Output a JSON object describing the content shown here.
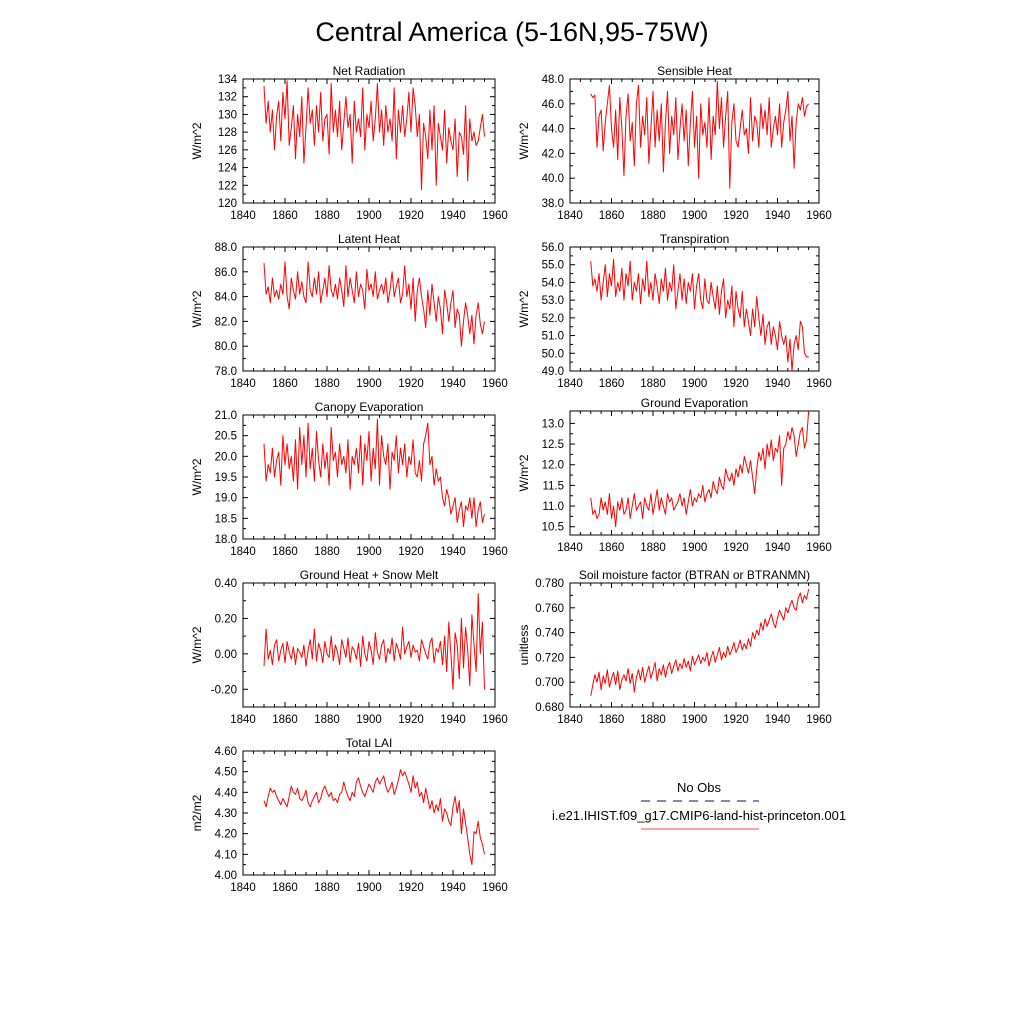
{
  "figure_title": "Central America (5-16N,95-75W)",
  "legend": {
    "entries": [
      {
        "label": "No Obs",
        "color": "#3a3aa0",
        "dash": true
      },
      {
        "label": "i.e21.IHIST.f09_g17.CMIP6-land-hist-princeton.001",
        "color": "#ff6b6b",
        "dash": false
      }
    ]
  },
  "series_color": "#ff0000",
  "chart_data": [
    {
      "type": "line",
      "title": "Net Radiation",
      "ylabel": "W/m^2",
      "xlim": [
        1840,
        1960
      ],
      "xticks": [
        1840,
        1860,
        1880,
        1900,
        1920,
        1940,
        1960
      ],
      "ylim": [
        120,
        134
      ],
      "yticks": [
        120,
        122,
        124,
        126,
        128,
        130,
        132,
        134
      ],
      "ydec": 0,
      "x_start": 1850,
      "values": [
        133.2,
        129.0,
        131.5,
        128.0,
        130.5,
        126.0,
        129.8,
        131.5,
        127.0,
        132.5,
        129.5,
        133.8,
        126.5,
        128.5,
        131.0,
        125.0,
        130.0,
        127.5,
        132.0,
        124.5,
        128.5,
        133.0,
        129.0,
        130.5,
        126.5,
        131.0,
        128.0,
        132.5,
        127.0,
        129.5,
        130.0,
        125.5,
        133.5,
        128.0,
        130.5,
        127.5,
        131.5,
        126.0,
        129.0,
        132.0,
        128.5,
        130.0,
        124.5,
        131.5,
        128.0,
        129.5,
        127.5,
        133.0,
        126.0,
        130.0,
        128.5,
        131.5,
        127.0,
        129.5,
        133.5,
        128.0,
        130.5,
        126.5,
        131.0,
        128.0,
        129.5,
        127.0,
        133.0,
        125.0,
        130.5,
        128.0,
        131.0,
        127.5,
        129.5,
        132.5,
        128.0,
        133.0,
        131.0,
        127.5,
        130.0,
        121.5,
        129.0,
        127.5,
        125.0,
        130.5,
        126.0,
        131.0,
        122.0,
        129.0,
        127.5,
        126.0,
        130.5,
        124.5,
        128.5,
        127.0,
        126.0,
        129.5,
        123.0,
        128.0,
        127.5,
        125.5,
        131.0,
        122.5,
        129.5,
        127.0,
        128.0,
        126.5,
        127.0,
        128.5,
        130.0,
        127.5
      ]
    },
    {
      "type": "line",
      "title": "Sensible Heat",
      "ylabel": "W/m^2",
      "xlim": [
        1840,
        1960
      ],
      "xticks": [
        1840,
        1860,
        1880,
        1900,
        1920,
        1940,
        1960
      ],
      "ylim": [
        38,
        48
      ],
      "yticks": [
        38,
        40,
        42,
        44,
        46,
        48
      ],
      "ydec": 1,
      "x_start": 1850,
      "values": [
        46.8,
        46.5,
        46.7,
        42.5,
        45.0,
        45.5,
        42.2,
        44.5,
        46.0,
        47.5,
        44.0,
        42.5,
        45.5,
        41.5,
        46.5,
        44.0,
        40.2,
        45.0,
        46.8,
        43.0,
        44.5,
        41.0,
        46.0,
        47.5,
        42.5,
        45.0,
        43.5,
        46.5,
        41.2,
        44.0,
        47.0,
        42.5,
        45.5,
        43.0,
        46.0,
        40.5,
        44.5,
        47.0,
        42.0,
        45.0,
        43.5,
        46.5,
        41.5,
        44.0,
        46.0,
        43.0,
        45.5,
        41.0,
        44.5,
        47.0,
        42.5,
        45.0,
        40.0,
        46.0,
        43.5,
        44.5,
        42.5,
        46.5,
        41.5,
        45.0,
        43.5,
        47.8,
        44.0,
        46.5,
        42.5,
        45.0,
        47.0,
        39.2,
        44.5,
        46.0,
        43.0,
        42.5,
        44.0,
        45.5,
        43.5,
        44.0,
        42.0,
        46.5,
        43.0,
        45.0,
        44.5,
        42.5,
        46.0,
        44.0,
        45.5,
        43.5,
        46.5,
        42.5,
        44.0,
        45.0,
        43.5,
        46.0,
        42.5,
        44.5,
        45.5,
        47.0,
        43.0,
        45.0,
        40.8,
        44.5,
        46.0,
        45.5,
        46.5,
        45.0,
        45.8,
        46.0
      ]
    },
    {
      "type": "line",
      "title": "Latent Heat",
      "ylabel": "W/m^2",
      "xlim": [
        1840,
        1960
      ],
      "xticks": [
        1840,
        1860,
        1880,
        1900,
        1920,
        1940,
        1960
      ],
      "ylim": [
        78,
        88
      ],
      "yticks": [
        78,
        80,
        82,
        84,
        86,
        88
      ],
      "ydec": 1,
      "x_start": 1850,
      "values": [
        86.7,
        84.2,
        84.8,
        83.5,
        85.5,
        84.0,
        84.5,
        83.8,
        85.0,
        84.2,
        86.8,
        84.0,
        83.0,
        85.5,
        84.5,
        83.8,
        86.0,
        84.2,
        85.2,
        84.0,
        83.5,
        86.8,
        84.5,
        84.0,
        85.5,
        84.2,
        86.0,
        83.5,
        84.5,
        85.5,
        84.0,
        86.5,
        84.5,
        84.0,
        85.0,
        83.8,
        85.5,
        84.5,
        83.2,
        86.5,
        84.0,
        85.5,
        84.5,
        83.5,
        86.0,
        84.0,
        85.0,
        84.5,
        83.0,
        86.2,
        84.5,
        85.0,
        84.0,
        86.0,
        83.8,
        84.5,
        85.0,
        84.2,
        85.5,
        83.5,
        84.5,
        86.0,
        84.0,
        84.8,
        85.5,
        83.5,
        84.2,
        86.5,
        84.0,
        85.0,
        83.0,
        85.5,
        82.0,
        84.5,
        85.5,
        84.0,
        83.0,
        81.5,
        84.5,
        82.5,
        85.0,
        83.5,
        82.0,
        84.0,
        83.0,
        81.0,
        84.5,
        83.5,
        82.0,
        83.5,
        84.5,
        81.5,
        83.0,
        82.5,
        80.0,
        82.0,
        83.5,
        82.5,
        81.0,
        82.5,
        80.2,
        82.5,
        83.5,
        81.8,
        81.0,
        82.0
      ]
    },
    {
      "type": "line",
      "title": "Transpiration",
      "ylabel": "W/m^2",
      "xlim": [
        1840,
        1960
      ],
      "xticks": [
        1840,
        1860,
        1880,
        1900,
        1920,
        1940,
        1960
      ],
      "ylim": [
        49,
        56
      ],
      "yticks": [
        49,
        50,
        51,
        52,
        53,
        54,
        55,
        56
      ],
      "ydec": 1,
      "x_start": 1850,
      "values": [
        55.2,
        53.8,
        54.2,
        53.5,
        54.5,
        53.0,
        54.0,
        55.0,
        53.2,
        54.5,
        53.8,
        55.3,
        53.2,
        54.0,
        53.5,
        54.8,
        53.0,
        54.5,
        53.8,
        55.2,
        53.0,
        54.0,
        53.5,
        54.5,
        52.8,
        54.2,
        53.5,
        55.2,
        53.2,
        54.0,
        53.0,
        54.5,
        53.8,
        52.8,
        54.2,
        53.5,
        54.8,
        53.0,
        54.0,
        53.5,
        55.0,
        52.5,
        53.5,
        54.5,
        53.0,
        54.2,
        52.8,
        54.0,
        53.5,
        54.5,
        52.5,
        53.8,
        54.5,
        53.0,
        52.5,
        54.2,
        53.0,
        52.8,
        54.0,
        53.2,
        52.5,
        53.8,
        52.2,
        53.5,
        54.2,
        52.0,
        53.0,
        52.5,
        53.8,
        51.5,
        53.5,
        52.5,
        52.0,
        53.5,
        51.5,
        52.5,
        51.8,
        51.0,
        52.5,
        51.5,
        53.2,
        52.0,
        51.0,
        52.2,
        50.5,
        51.5,
        51.8,
        50.5,
        51.5,
        51.0,
        50.2,
        51.8,
        51.0,
        50.5,
        51.0,
        49.5,
        50.8,
        49.0,
        50.5,
        51.0,
        50.2,
        51.8,
        51.5,
        50.0,
        49.8,
        49.8
      ]
    },
    {
      "type": "line",
      "title": "Canopy Evaporation",
      "ylabel": "W/m^2",
      "xlim": [
        1840,
        1960
      ],
      "xticks": [
        1840,
        1860,
        1880,
        1900,
        1920,
        1940,
        1960
      ],
      "ylim": [
        18,
        21
      ],
      "yticks": [
        18.0,
        18.5,
        19.0,
        19.5,
        20.0,
        20.5,
        21.0
      ],
      "ydec": 1,
      "x_start": 1850,
      "values": [
        20.3,
        19.4,
        19.8,
        19.6,
        20.2,
        19.5,
        19.9,
        20.1,
        19.3,
        20.5,
        19.8,
        20.3,
        19.7,
        20.0,
        19.4,
        20.4,
        19.2,
        20.7,
        19.8,
        20.5,
        19.5,
        20.8,
        19.7,
        20.2,
        19.4,
        20.6,
        19.9,
        19.5,
        20.3,
        19.7,
        20.1,
        19.3,
        20.7,
        19.9,
        20.1,
        19.5,
        20.3,
        19.8,
        20.0,
        19.6,
        20.4,
        19.2,
        20.0,
        19.8,
        20.2,
        19.6,
        20.5,
        19.3,
        20.3,
        19.9,
        20.6,
        19.4,
        20.2,
        19.7,
        20.9,
        19.3,
        20.5,
        20.0,
        19.8,
        20.3,
        19.2,
        20.1,
        19.9,
        20.5,
        19.6,
        20.2,
        19.8,
        20.3,
        19.5,
        20.0,
        19.8,
        20.4,
        19.6,
        19.5,
        19.9,
        19.4,
        20.3,
        20.5,
        20.8,
        19.8,
        20.0,
        19.3,
        19.7,
        19.4,
        19.5,
        19.0,
        18.8,
        19.2,
        19.0,
        18.6,
        18.8,
        19.0,
        18.4,
        18.7,
        18.9,
        18.3,
        18.8,
        18.7,
        19.0,
        18.5,
        19.0,
        18.3,
        18.7,
        18.9,
        18.4,
        18.6
      ]
    },
    {
      "type": "line",
      "title": "Ground Evaporation",
      "ylabel": "W/m^2",
      "xlim": [
        1840,
        1960
      ],
      "xticks": [
        1840,
        1860,
        1880,
        1900,
        1920,
        1940,
        1960
      ],
      "ylim": [
        10.3,
        13.3
      ],
      "yticks": [
        10.5,
        11.0,
        11.5,
        12.0,
        12.5,
        13.0
      ],
      "ydec": 1,
      "x_start": 1850,
      "values": [
        11.2,
        10.8,
        10.9,
        10.7,
        10.8,
        11.2,
        10.9,
        11.1,
        10.8,
        11.3,
        10.7,
        11.0,
        10.5,
        11.1,
        10.9,
        11.2,
        10.8,
        10.9,
        11.2,
        10.7,
        11.0,
        11.3,
        10.9,
        11.0,
        11.1,
        10.7,
        11.2,
        11.0,
        10.9,
        11.3,
        10.8,
        11.1,
        11.4,
        10.9,
        11.2,
        11.0,
        10.8,
        11.3,
        11.1,
        11.2,
        10.9,
        11.0,
        11.1,
        11.3,
        11.0,
        11.2,
        10.8,
        11.1,
        11.4,
        11.0,
        11.2,
        11.1,
        11.3,
        11.2,
        11.5,
        11.1,
        11.3,
        11.4,
        11.2,
        11.6,
        11.4,
        11.3,
        11.7,
        11.5,
        11.4,
        11.9,
        11.7,
        11.6,
        11.8,
        11.5,
        11.9,
        11.7,
        12.0,
        11.8,
        12.2,
        12.0,
        11.8,
        12.1,
        11.7,
        11.3,
        11.9,
        12.3,
        12.1,
        12.4,
        11.9,
        12.5,
        12.2,
        12.6,
        12.1,
        12.4,
        12.3,
        12.7,
        11.5,
        12.4,
        12.5,
        12.8,
        12.6,
        12.9,
        12.7,
        12.2,
        12.5,
        12.8,
        12.9,
        12.4,
        12.6,
        13.3
      ]
    },
    {
      "type": "line",
      "title": "Ground Heat + Snow Melt",
      "ylabel": "W/m^2",
      "xlim": [
        1840,
        1960
      ],
      "xticks": [
        1840,
        1860,
        1880,
        1900,
        1920,
        1940,
        1960
      ],
      "ylim": [
        -0.3,
        0.4
      ],
      "yticks": [
        -0.2,
        0.0,
        0.2,
        0.4
      ],
      "ydec": 2,
      "x_start": 1850,
      "values": [
        -0.07,
        0.14,
        -0.03,
        0.02,
        -0.06,
        0.05,
        0.08,
        -0.04,
        0.02,
        0.06,
        -0.05,
        0.07,
        0.01,
        -0.03,
        0.04,
        -0.06,
        0.03,
        0.01,
        -0.02,
        0.05,
        -0.07,
        0.02,
        0.08,
        -0.03,
        0.14,
        -0.04,
        0.06,
        0.02,
        -0.05,
        0.07,
        0.0,
        -0.02,
        0.1,
        -0.04,
        0.05,
        0.01,
        -0.06,
        0.08,
        0.03,
        -0.02,
        0.09,
        -0.05,
        0.04,
        0.02,
        -0.03,
        0.06,
        -0.07,
        0.1,
        0.0,
        -0.04,
        0.07,
        0.02,
        -0.06,
        0.12,
        0.01,
        -0.03,
        0.05,
        0.08,
        -0.05,
        0.03,
        0.0,
        0.09,
        -0.04,
        0.06,
        0.02,
        -0.03,
        0.15,
        0.0,
        0.04,
        0.07,
        -0.02,
        0.05,
        0.01,
        0.02,
        -0.04,
        0.08,
        0.04,
        0.0,
        -0.03,
        0.06,
        0.09,
        -0.05,
        0.03,
        0.01,
        0.07,
        -0.06,
        0.1,
        -0.1,
        0.18,
        0.0,
        -0.2,
        0.12,
        0.05,
        -0.14,
        0.2,
        -0.08,
        0.15,
        0.02,
        -0.18,
        0.22,
        0.05,
        -0.1,
        0.34,
        0.0,
        0.18,
        -0.2
      ]
    },
    {
      "type": "line",
      "title": "Soil moisture factor (BTRAN or BTRANMN)",
      "ylabel": "unitless",
      "xlim": [
        1840,
        1960
      ],
      "xticks": [
        1840,
        1860,
        1880,
        1900,
        1920,
        1940,
        1960
      ],
      "ylim": [
        0.68,
        0.78
      ],
      "yticks": [
        0.68,
        0.7,
        0.72,
        0.74,
        0.76,
        0.78
      ],
      "ydec": 3,
      "x_start": 1850,
      "values": [
        0.689,
        0.698,
        0.706,
        0.7,
        0.708,
        0.694,
        0.705,
        0.699,
        0.71,
        0.696,
        0.703,
        0.708,
        0.698,
        0.709,
        0.694,
        0.702,
        0.706,
        0.701,
        0.711,
        0.699,
        0.707,
        0.692,
        0.704,
        0.71,
        0.702,
        0.712,
        0.7,
        0.707,
        0.713,
        0.703,
        0.709,
        0.716,
        0.701,
        0.711,
        0.706,
        0.714,
        0.704,
        0.712,
        0.716,
        0.707,
        0.713,
        0.718,
        0.709,
        0.715,
        0.711,
        0.719,
        0.712,
        0.717,
        0.709,
        0.721,
        0.714,
        0.718,
        0.722,
        0.715,
        0.72,
        0.717,
        0.724,
        0.713,
        0.72,
        0.725,
        0.716,
        0.722,
        0.728,
        0.718,
        0.724,
        0.72,
        0.729,
        0.722,
        0.726,
        0.732,
        0.724,
        0.728,
        0.734,
        0.726,
        0.731,
        0.727,
        0.735,
        0.729,
        0.74,
        0.735,
        0.742,
        0.738,
        0.748,
        0.742,
        0.751,
        0.745,
        0.75,
        0.755,
        0.748,
        0.744,
        0.752,
        0.758,
        0.754,
        0.75,
        0.76,
        0.756,
        0.762,
        0.766,
        0.76,
        0.758,
        0.768,
        0.772,
        0.764,
        0.77,
        0.767,
        0.775
      ]
    },
    {
      "type": "line",
      "title": "Total LAI",
      "ylabel": "m2/m2",
      "xlim": [
        1840,
        1960
      ],
      "xticks": [
        1840,
        1860,
        1880,
        1900,
        1920,
        1940,
        1960
      ],
      "ylim": [
        4.0,
        4.6
      ],
      "yticks": [
        4.0,
        4.1,
        4.2,
        4.3,
        4.4,
        4.5,
        4.6
      ],
      "ydec": 2,
      "x_start": 1850,
      "values": [
        4.36,
        4.33,
        4.38,
        4.42,
        4.4,
        4.41,
        4.38,
        4.36,
        4.34,
        4.37,
        4.35,
        4.33,
        4.38,
        4.43,
        4.4,
        4.39,
        4.42,
        4.37,
        4.36,
        4.38,
        4.41,
        4.35,
        4.33,
        4.36,
        4.38,
        4.4,
        4.35,
        4.37,
        4.41,
        4.43,
        4.4,
        4.38,
        4.4,
        4.36,
        4.37,
        4.35,
        4.39,
        4.4,
        4.45,
        4.41,
        4.38,
        4.36,
        4.4,
        4.38,
        4.45,
        4.47,
        4.43,
        4.4,
        4.38,
        4.41,
        4.44,
        4.42,
        4.4,
        4.45,
        4.47,
        4.44,
        4.46,
        4.48,
        4.43,
        4.4,
        4.42,
        4.45,
        4.39,
        4.42,
        4.46,
        4.51,
        4.48,
        4.5,
        4.47,
        4.44,
        4.4,
        4.48,
        4.42,
        4.45,
        4.38,
        4.4,
        4.35,
        4.42,
        4.37,
        4.32,
        4.36,
        4.3,
        4.34,
        4.31,
        4.37,
        4.26,
        4.32,
        4.3,
        4.26,
        4.24,
        4.33,
        4.38,
        4.3,
        4.36,
        4.2,
        4.32,
        4.25,
        4.18,
        4.1,
        4.05,
        4.21,
        4.2,
        4.26,
        4.18,
        4.15,
        4.1
      ]
    }
  ]
}
